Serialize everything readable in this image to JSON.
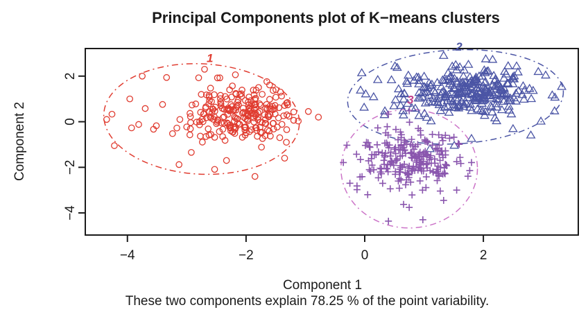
{
  "title": "Principal Components plot of K−means clusters",
  "subtitle": "These two components explain 78.25 % of the point variability.",
  "chart_data": {
    "type": "scatter",
    "title": "Principal Components plot of K−means clusters",
    "xlabel": "Component 1",
    "ylabel": "Component 2",
    "footnote": "These two components explain 78.25 % of the point variability.",
    "x_range": [
      -4.71,
      3.6
    ],
    "y_range": [
      -4.97,
      3.21
    ],
    "x_ticks": [
      {
        "v": -4,
        "label": "−4"
      },
      {
        "v": -2,
        "label": "−2"
      },
      {
        "v": 0,
        "label": "0"
      },
      {
        "v": 2,
        "label": "2"
      }
    ],
    "y_ticks": [
      {
        "v": 2,
        "label": "2"
      },
      {
        "v": 0,
        "label": "0"
      },
      {
        "v": -2,
        "label": "−2"
      },
      {
        "v": -4,
        "label": "−4"
      }
    ],
    "grid": false,
    "legend": "none",
    "axis_color": "#1a1a1a",
    "clusters": [
      {
        "name": "cluster-1",
        "label": "1",
        "label_pos": [
          -2.61,
          2.61
        ],
        "label_color": "#e03c30",
        "marker": "circle",
        "color": "#e03c30",
        "count": 240,
        "seed": 11,
        "center": [
          -2.0,
          0.35
        ],
        "sd": [
          0.55,
          0.62
        ],
        "ellipse": {
          "cx": -2.75,
          "cy": 0.12,
          "rx": 1.65,
          "ry": 2.42,
          "angle": 3,
          "color": "#e03c30"
        },
        "outliers": [
          [
            -4.35,
            0.1
          ],
          [
            -4.26,
            0.33
          ],
          [
            -4.22,
            -1.05
          ],
          [
            -3.96,
            1.0
          ],
          [
            -3.93,
            -0.27
          ],
          [
            -3.81,
            -0.12
          ],
          [
            -3.75,
            2.0
          ],
          [
            -3.7,
            0.58
          ],
          [
            -3.56,
            -0.33
          ],
          [
            -3.34,
            1.94
          ],
          [
            -3.13,
            -1.88
          ],
          [
            -2.7,
            2.3
          ],
          [
            -2.53,
            -2.09
          ],
          [
            -2.33,
            -1.7
          ],
          [
            -2.18,
            2.06
          ],
          [
            -1.85,
            -2.4
          ],
          [
            -1.65,
            1.76
          ],
          [
            -1.35,
            -1.6
          ],
          [
            -1.12,
            0.03
          ],
          [
            -0.95,
            0.45
          ],
          [
            -0.78,
            0.2
          ]
        ]
      },
      {
        "name": "cluster-2",
        "label": "2",
        "label_pos": [
          1.59,
          3.12
        ],
        "label_color": "#4b55a5",
        "marker": "triangle",
        "color": "#4b55a5",
        "count": 270,
        "seed": 22,
        "center": [
          1.75,
          1.3
        ],
        "sd": [
          0.55,
          0.5
        ],
        "ellipse": {
          "cx": 1.53,
          "cy": 1.09,
          "rx": 1.82,
          "ry": 2.06,
          "angle": -3,
          "color": "#4b55a5"
        },
        "outliers": [
          [
            -0.07,
            1.39
          ],
          [
            -0.05,
            2.15
          ],
          [
            -0.01,
            0.64
          ],
          [
            0.15,
            1.1
          ],
          [
            0.22,
            1.85
          ],
          [
            0.34,
            0.48
          ],
          [
            0.51,
            2.45
          ],
          [
            1.33,
            2.91
          ],
          [
            2.04,
            2.76
          ],
          [
            2.56,
            2.45
          ],
          [
            3.05,
            2.05
          ],
          [
            3.32,
            1.55
          ],
          [
            3.2,
            0.48
          ],
          [
            2.97,
            0.03
          ],
          [
            2.8,
            -0.58
          ],
          [
            2.5,
            -0.3
          ],
          [
            1.51,
            -1.03
          ],
          [
            1.1,
            -1.18
          ],
          [
            1.8,
            -0.73
          ]
        ]
      },
      {
        "name": "cluster-3",
        "label": "3",
        "label_pos": [
          0.77,
          0.79
        ],
        "label_color": "#c2418c",
        "marker": "plus",
        "color": "#8a56ae",
        "count": 220,
        "seed": 33,
        "center": [
          0.78,
          -1.65
        ],
        "sd": [
          0.42,
          0.62
        ],
        "ellipse": {
          "cx": 0.75,
          "cy": -2.06,
          "rx": 1.15,
          "ry": 2.6,
          "angle": 0,
          "color": "#cc74c8"
        },
        "outliers": [
          [
            -0.36,
            -1.79
          ],
          [
            -0.3,
            -1.03
          ],
          [
            -0.25,
            -2.7
          ],
          [
            0.05,
            -3.2
          ],
          [
            0.22,
            -0.27
          ],
          [
            0.4,
            -4.36
          ],
          [
            0.4,
            0.33
          ],
          [
            0.75,
            -3.76
          ],
          [
            0.75,
            0.48
          ],
          [
            0.98,
            -4.3
          ],
          [
            1.33,
            -3.45
          ],
          [
            1.55,
            -3.0
          ],
          [
            1.74,
            -2.39
          ],
          [
            1.8,
            -1.79
          ]
        ]
      }
    ]
  }
}
